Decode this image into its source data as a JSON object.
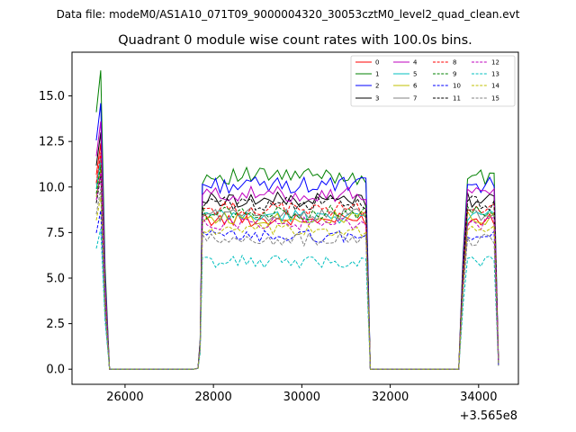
{
  "figure": {
    "suptitle": "Data file: modeM0/AS1A10_071T09_9000004320_30053cztM0_level2_quad_clean.evt"
  },
  "chart_data": {
    "type": "line",
    "title": "Quadrant 0 module wise count rates with 100.0s bins.",
    "xlabel": "",
    "ylabel": "",
    "x_offset_label": "+3.565e8",
    "xlim": [
      24800,
      34900
    ],
    "ylim": [
      -0.83,
      17.4
    ],
    "xticks": [
      26000,
      28000,
      30000,
      32000,
      34000
    ],
    "xtick_labels": [
      "26000",
      "28000",
      "30000",
      "32000",
      "34000"
    ],
    "yticks": [
      0.0,
      2.5,
      5.0,
      7.5,
      10.0,
      12.5,
      15.0
    ],
    "ytick_labels": [
      "0.0",
      "2.5",
      "5.0",
      "7.5",
      "10.0",
      "12.5",
      "15.0"
    ],
    "legend_position": "top-right",
    "segments": [
      {
        "start": 25350,
        "end": 25550
      },
      {
        "start": 27750,
        "end": 31450
      },
      {
        "start": 33650,
        "end": 34350
      }
    ],
    "segment_tail_x": [
      25650,
      31550,
      34450
    ],
    "series": [
      {
        "name": "0",
        "color": "#ff0000",
        "dash": "solid",
        "level": 8.2,
        "peak": 12.4,
        "tail": 0.3
      },
      {
        "name": "1",
        "color": "#008000",
        "dash": "solid",
        "level": 10.6,
        "peak": 16.4,
        "tail": 0.4
      },
      {
        "name": "2",
        "color": "#0000ff",
        "dash": "solid",
        "level": 10.1,
        "peak": 14.6,
        "tail": 0.3
      },
      {
        "name": "3",
        "color": "#000000",
        "dash": "solid",
        "level": 9.3,
        "peak": 13.0,
        "tail": 0.3
      },
      {
        "name": "4",
        "color": "#bf00bf",
        "dash": "solid",
        "level": 9.6,
        "peak": 13.6,
        "tail": 0.3
      },
      {
        "name": "5",
        "color": "#00bfbf",
        "dash": "solid",
        "level": 8.4,
        "peak": 11.5,
        "tail": 0.3
      },
      {
        "name": "6",
        "color": "#bfbf00",
        "dash": "solid",
        "level": 8.3,
        "peak": 11.0,
        "tail": 0.3
      },
      {
        "name": "7",
        "color": "#808080",
        "dash": "solid",
        "level": 8.5,
        "peak": 11.8,
        "tail": 0.3
      },
      {
        "name": "8",
        "color": "#ff0000",
        "dash": "dashed",
        "level": 8.8,
        "peak": 11.9,
        "tail": 0.3
      },
      {
        "name": "9",
        "color": "#008000",
        "dash": "dashed",
        "level": 8.6,
        "peak": 11.2,
        "tail": 0.3
      },
      {
        "name": "10",
        "color": "#0000ff",
        "dash": "dashed",
        "level": 7.3,
        "peak": 8.7,
        "tail": 0.2
      },
      {
        "name": "11",
        "color": "#000000",
        "dash": "dashed",
        "level": 9.1,
        "peak": 10.6,
        "tail": 0.3
      },
      {
        "name": "12",
        "color": "#bf00bf",
        "dash": "dashed",
        "level": 8.0,
        "peak": 10.8,
        "tail": 0.3
      },
      {
        "name": "13",
        "color": "#00bfbf",
        "dash": "dashed",
        "level": 5.9,
        "peak": 7.7,
        "tail": 0.2
      },
      {
        "name": "14",
        "color": "#bfbf00",
        "dash": "dashed",
        "level": 7.6,
        "peak": 9.5,
        "tail": 0.2
      },
      {
        "name": "15",
        "color": "#808080",
        "dash": "dashed",
        "level": 7.1,
        "peak": 9.9,
        "tail": 0.2
      }
    ]
  }
}
